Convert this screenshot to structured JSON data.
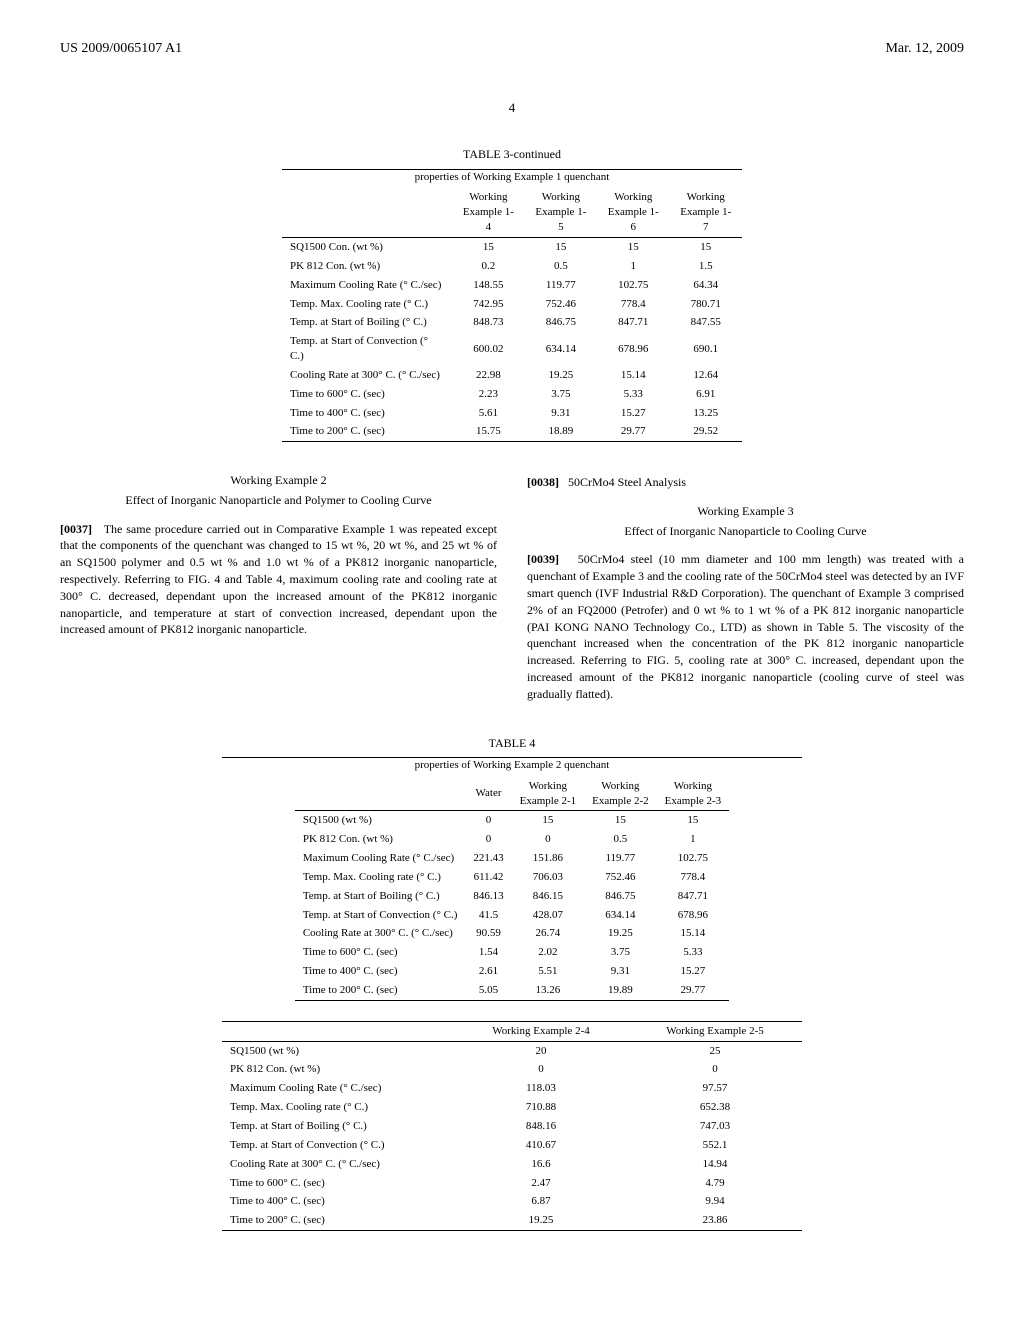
{
  "header": {
    "left": "US 2009/0065107 A1",
    "right": "Mar. 12, 2009"
  },
  "page_number": "4",
  "table3": {
    "title": "TABLE 3-continued",
    "subtitle": "properties of Working Example 1 quenchant",
    "columns": [
      "",
      "Working Example 1-4",
      "Working Example 1-5",
      "Working Example 1-6",
      "Working Example 1-7"
    ],
    "rows": [
      [
        "SQ1500 Con. (wt %)",
        "15",
        "15",
        "15",
        "15"
      ],
      [
        "PK 812 Con. (wt %)",
        "0.2",
        "0.5",
        "1",
        "1.5"
      ],
      [
        "Maximum Cooling Rate (° C./sec)",
        "148.55",
        "119.77",
        "102.75",
        "64.34"
      ],
      [
        "Temp. Max. Cooling rate (° C.)",
        "742.95",
        "752.46",
        "778.4",
        "780.71"
      ],
      [
        "Temp. at Start of Boiling (° C.)",
        "848.73",
        "846.75",
        "847.71",
        "847.55"
      ],
      [
        "Temp. at Start of Convection (° C.)",
        "600.02",
        "634.14",
        "678.96",
        "690.1"
      ],
      [
        "Cooling Rate at 300° C. (° C./sec)",
        "22.98",
        "19.25",
        "15.14",
        "12.64"
      ],
      [
        "Time to 600° C. (sec)",
        "2.23",
        "3.75",
        "5.33",
        "6.91"
      ],
      [
        "Time to 400° C. (sec)",
        "5.61",
        "9.31",
        "15.27",
        "13.25"
      ],
      [
        "Time to 200° C. (sec)",
        "15.75",
        "18.89",
        "29.77",
        "29.52"
      ]
    ]
  },
  "left_col": {
    "example_title": "Working Example 2",
    "example_subtitle": "Effect of Inorganic Nanoparticle and Polymer to Cooling Curve",
    "para_num": "[0037]",
    "para_text": "The same procedure carried out in Comparative Example 1 was repeated except that the components of the quenchant was changed to 15 wt %, 20 wt %, and 25 wt % of an SQ1500 polymer and 0.5 wt % and 1.0 wt % of a PK812 inorganic nanoparticle, respectively. Referring to FIG. 4 and Table 4, maximum cooling rate and cooling rate at 300° C. decreased, dependant upon the increased amount of the PK812 inorganic nanoparticle, and temperature at start of convection increased, dependant upon the increased amount of PK812 inorganic nanoparticle."
  },
  "right_col": {
    "para38_num": "[0038]",
    "para38_text": "50CrMo4 Steel Analysis",
    "example_title": "Working Example 3",
    "example_subtitle": "Effect of Inorganic Nanoparticle to Cooling Curve",
    "para39_num": "[0039]",
    "para39_text": "50CrMo4 steel (10 mm diameter and 100 mm length) was treated with a quenchant of Example 3 and the cooling rate of the 50CrMo4 steel was detected by an IVF smart quench (IVF Industrial R&D Corporation). The quenchant of Example 3 comprised 2% of an FQ2000 (Petrofer) and 0 wt % to 1 wt % of a PK 812 inorganic nanoparticle (PAI KONG NANO Technology Co., LTD) as shown in Table 5. The viscosity of the quenchant increased when the concentration of the PK 812 inorganic nanoparticle increased. Referring to FIG. 5, cooling rate at 300° C. increased, dependant upon the increased amount of the PK812 inorganic nanoparticle (cooling curve of steel was gradually flatted)."
  },
  "table4": {
    "title": "TABLE 4",
    "subtitle": "properties of Working Example 2 quenchant",
    "part1_columns": [
      "",
      "Water",
      "Working Example 2-1",
      "Working Example 2-2",
      "Working Example 2-3"
    ],
    "part1_rows": [
      [
        "SQ1500 (wt %)",
        "0",
        "15",
        "15",
        "15"
      ],
      [
        "PK 812 Con. (wt %)",
        "0",
        "0",
        "0.5",
        "1"
      ],
      [
        "Maximum Cooling Rate (° C./sec)",
        "221.43",
        "151.86",
        "119.77",
        "102.75"
      ],
      [
        "Temp. Max. Cooling rate (° C.)",
        "611.42",
        "706.03",
        "752.46",
        "778.4"
      ],
      [
        "Temp. at Start of Boiling (° C.)",
        "846.13",
        "846.15",
        "846.75",
        "847.71"
      ],
      [
        "Temp. at Start of Convection (° C.)",
        "41.5",
        "428.07",
        "634.14",
        "678.96"
      ],
      [
        "Cooling Rate at 300° C. (° C./sec)",
        "90.59",
        "26.74",
        "19.25",
        "15.14"
      ],
      [
        "Time to 600° C. (sec)",
        "1.54",
        "2.02",
        "3.75",
        "5.33"
      ],
      [
        "Time to 400° C. (sec)",
        "2.61",
        "5.51",
        "9.31",
        "15.27"
      ],
      [
        "Time to 200° C. (sec)",
        "5.05",
        "13.26",
        "19.89",
        "29.77"
      ]
    ],
    "part2_columns": [
      "",
      "Working Example 2-4",
      "Working Example 2-5"
    ],
    "part2_rows": [
      [
        "SQ1500 (wt %)",
        "20",
        "25"
      ],
      [
        "PK 812 Con. (wt %)",
        "0",
        "0"
      ],
      [
        "Maximum Cooling Rate (° C./sec)",
        "118.03",
        "97.57"
      ],
      [
        "Temp. Max. Cooling rate (° C.)",
        "710.88",
        "652.38"
      ],
      [
        "Temp. at Start of Boiling (° C.)",
        "848.16",
        "747.03"
      ],
      [
        "Temp. at Start of Convection (° C.)",
        "410.67",
        "552.1"
      ],
      [
        "Cooling Rate at 300° C. (° C./sec)",
        "16.6",
        "14.94"
      ],
      [
        "Time to 600° C. (sec)",
        "2.47",
        "4.79"
      ],
      [
        "Time to 400° C. (sec)",
        "6.87",
        "9.94"
      ],
      [
        "Time to 200° C. (sec)",
        "19.25",
        "23.86"
      ]
    ]
  }
}
